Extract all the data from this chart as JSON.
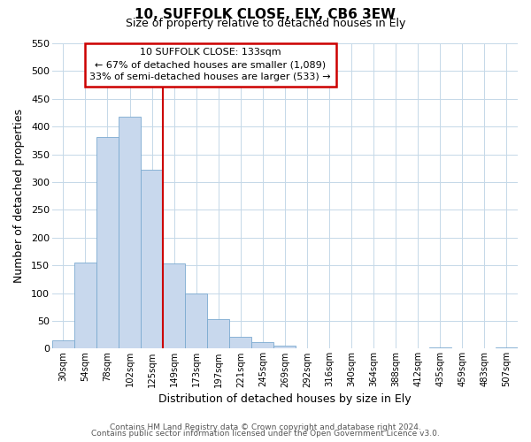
{
  "title": "10, SUFFOLK CLOSE, ELY, CB6 3EW",
  "subtitle": "Size of property relative to detached houses in Ely",
  "xlabel": "Distribution of detached houses by size in Ely",
  "ylabel": "Number of detached properties",
  "bar_labels": [
    "30sqm",
    "54sqm",
    "78sqm",
    "102sqm",
    "125sqm",
    "149sqm",
    "173sqm",
    "197sqm",
    "221sqm",
    "245sqm",
    "269sqm",
    "292sqm",
    "316sqm",
    "340sqm",
    "364sqm",
    "388sqm",
    "412sqm",
    "435sqm",
    "459sqm",
    "483sqm",
    "507sqm"
  ],
  "bar_values": [
    15,
    155,
    382,
    418,
    322,
    153,
    100,
    53,
    22,
    12,
    5,
    0,
    0,
    0,
    0,
    0,
    0,
    2,
    0,
    0,
    2
  ],
  "bar_color": "#c8d8ed",
  "bar_edge_color": "#7baad0",
  "property_line_x": 4.5,
  "annotation_line1": "10 SUFFOLK CLOSE: 133sqm",
  "annotation_line2": "← 67% of detached houses are smaller (1,089)",
  "annotation_line3": "33% of semi-detached houses are larger (533) →",
  "vline_color": "#cc0000",
  "annotation_box_color": "#ffffff",
  "annotation_box_edge": "#cc0000",
  "ylim": [
    0,
    550
  ],
  "yticks": [
    0,
    50,
    100,
    150,
    200,
    250,
    300,
    350,
    400,
    450,
    500,
    550
  ],
  "footer_line1": "Contains HM Land Registry data © Crown copyright and database right 2024.",
  "footer_line2": "Contains public sector information licensed under the Open Government Licence v3.0.",
  "background_color": "#ffffff",
  "grid_color": "#c5d8e8"
}
